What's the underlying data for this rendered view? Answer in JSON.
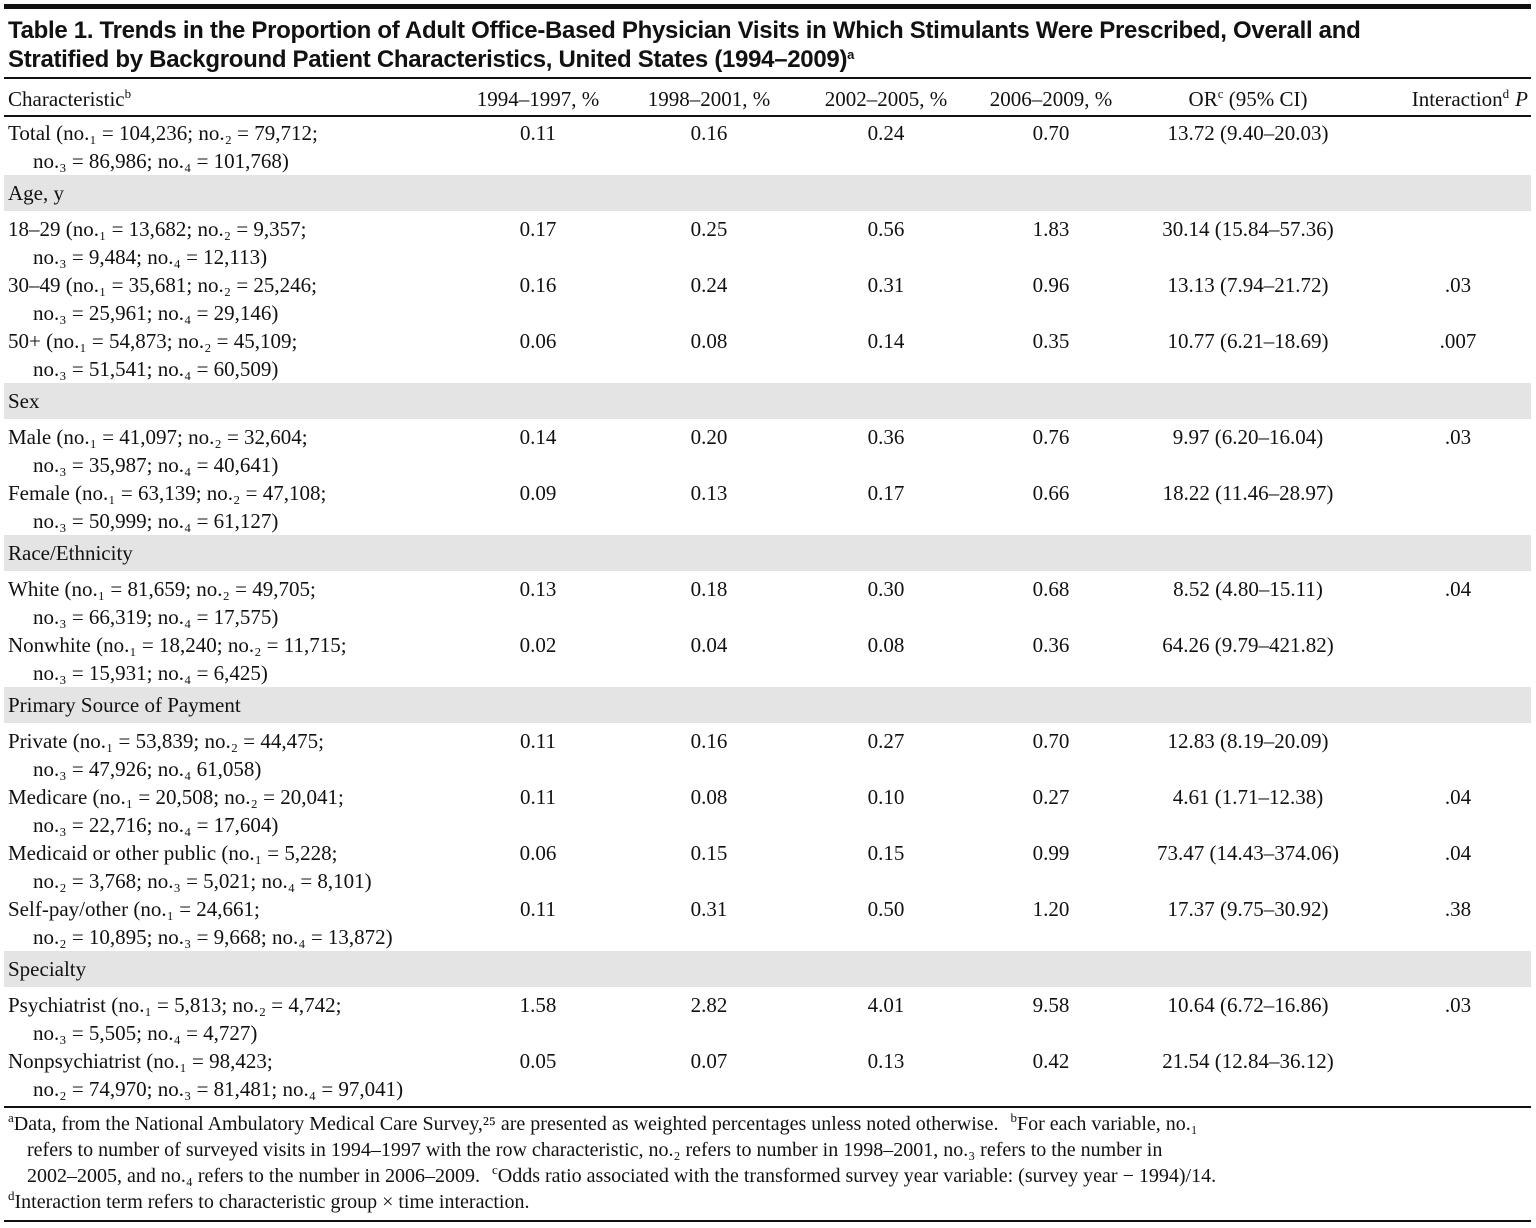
{
  "header": {
    "title_lines": [
      "Table 1. Trends in the Proportion of Adult Office-Based Physician Visits in Which Stimulants Were Prescribed, Overall and",
      "Stratified by Background Patient Characteristics, United States (1994–2009)"
    ],
    "title_note": "a"
  },
  "table": {
    "columns": [
      {
        "text": "Characteristic",
        "note": "b"
      },
      {
        "text": "1994–1997, %"
      },
      {
        "text": "1998–2001, %"
      },
      {
        "text": "2002–2005, %"
      },
      {
        "text": "2006–2009, %"
      },
      {
        "text": "OR",
        "note": "c",
        "suffix": " (95% CI)"
      },
      {
        "text": "Interaction",
        "note": "d",
        "suffix": "P"
      }
    ],
    "rows": [
      {
        "label": [
          "Total (no.₁ = 104,236; no.₂ = 79,712;",
          "no.₃ = 86,986; no.₄ = 101,768)"
        ],
        "values": [
          "0.11",
          "0.16",
          "0.24",
          "0.70"
        ],
        "or": "13.72 (9.40–20.03)"
      },
      {
        "section": "Age, y"
      },
      {
        "label": [
          "18–29 (no.₁ = 13,682; no.₂ = 9,357;",
          "no.₃ = 9,484; no.₄ = 12,113)"
        ],
        "values": [
          "0.17",
          "0.25",
          "0.56",
          "1.83"
        ],
        "or": "30.14 (15.84–57.36)"
      },
      {
        "label": [
          "30–49 (no.₁ = 35,681; no.₂ = 25,246;",
          "no.₃ = 25,961; no.₄ = 29,146)"
        ],
        "values": [
          "0.16",
          "0.24",
          "0.31",
          "0.96"
        ],
        "or": "13.13 (7.94–21.72)",
        "p": ".03"
      },
      {
        "label": [
          "50+ (no.₁ = 54,873; no.₂ = 45,109;",
          "no.₃ = 51,541; no.₄ = 60,509)"
        ],
        "values": [
          "0.06",
          "0.08",
          "0.14",
          "0.35"
        ],
        "or": "10.77 (6.21–18.69)",
        "p": ".007"
      },
      {
        "section": "Sex"
      },
      {
        "label": [
          "Male (no.₁ = 41,097; no.₂ = 32,604;",
          "no.₃ = 35,987; no.₄ = 40,641)"
        ],
        "values": [
          "0.14",
          "0.20",
          "0.36",
          "0.76"
        ],
        "or": "9.97 (6.20–16.04)",
        "p": ".03"
      },
      {
        "label": [
          "Female (no.₁ = 63,139; no.₂ = 47,108;",
          "no.₃ = 50,999; no.₄ = 61,127)"
        ],
        "values": [
          "0.09",
          "0.13",
          "0.17",
          "0.66"
        ],
        "or": "18.22 (11.46–28.97)"
      },
      {
        "section": "Race/Ethnicity"
      },
      {
        "label": [
          "White (no.₁ = 81,659; no.₂ = 49,705;",
          "no.₃ = 66,319; no.₄ = 17,575)"
        ],
        "values": [
          "0.13",
          "0.18",
          "0.30",
          "0.68"
        ],
        "or": "8.52 (4.80–15.11)",
        "p": ".04"
      },
      {
        "label": [
          "Nonwhite (no.₁ = 18,240; no.₂ = 11,715;",
          "no.₃ = 15,931; no.₄ = 6,425)"
        ],
        "values": [
          "0.02",
          "0.04",
          "0.08",
          "0.36"
        ],
        "or": "64.26 (9.79–421.82)"
      },
      {
        "section": "Primary Source of Payment"
      },
      {
        "label": [
          "Private (no.₁ = 53,839; no.₂ = 44,475;",
          "no.₃ = 47,926; no.₄  61,058)"
        ],
        "values": [
          "0.11",
          "0.16",
          "0.27",
          "0.70"
        ],
        "or": "12.83 (8.19–20.09)"
      },
      {
        "label": [
          "Medicare (no.₁ = 20,508; no.₂ = 20,041;",
          "no.₃ = 22,716; no.₄ = 17,604)"
        ],
        "values": [
          "0.11",
          "0.08",
          "0.10",
          "0.27"
        ],
        "or": "4.61 (1.71–12.38)",
        "p": ".04"
      },
      {
        "label": [
          "Medicaid or other public (no.₁ = 5,228;",
          "no.₂ = 3,768; no.₃ = 5,021; no.₄ = 8,101)"
        ],
        "values": [
          "0.06",
          "0.15",
          "0.15",
          "0.99"
        ],
        "or": "73.47 (14.43–374.06)",
        "p": ".04"
      },
      {
        "label": [
          "Self-pay/other (no.₁ = 24,661;",
          "no.₂ = 10,895; no.₃ = 9,668; no.₄ = 13,872)"
        ],
        "values": [
          "0.11",
          "0.31",
          "0.50",
          "1.20"
        ],
        "or": "17.37 (9.75–30.92)",
        "p": ".38"
      },
      {
        "section": "Specialty"
      },
      {
        "label": [
          "Psychiatrist (no.₁ = 5,813; no.₂ = 4,742;",
          "no.₃ = 5,505; no.₄ = 4,727)"
        ],
        "values": [
          "1.58",
          "2.82",
          "4.01",
          "9.58"
        ],
        "or": "10.64 (6.72–16.86)",
        "p": ".03"
      },
      {
        "label": [
          "Nonpsychiatrist (no.₁ = 98,423;",
          "no.₂ = 74,970; no.₃ = 81,481; no.₄ = 97,041)"
        ],
        "values": [
          "0.05",
          "0.07",
          "0.13",
          "0.42"
        ],
        "or": "21.54 (12.84–36.12)"
      }
    ]
  },
  "notes": [
    {
      "mark": "a",
      "lines": [
        "Data, from the National Ambulatory Medical Care Survey,²⁵ are presented as weighted percentages unless noted otherwise."
      ]
    },
    {
      "mark": "b",
      "lines": [
        "For each variable, no.₁",
        "refers to number of surveyed visits in 1994–1997 with the row characteristic, no.₂ refers to number in 1998–2001, no.₃ refers to the number in",
        "2002–2005, and no.₄ refers to the number in 2006–2009."
      ]
    },
    {
      "mark": "c",
      "lines": [
        "Odds ratio associated with the transformed survey year variable: (survey year − 1994)/14."
      ]
    },
    {
      "mark": "d",
      "lines": [
        "Interaction term refers to characteristic group × time interaction."
      ]
    }
  ]
}
